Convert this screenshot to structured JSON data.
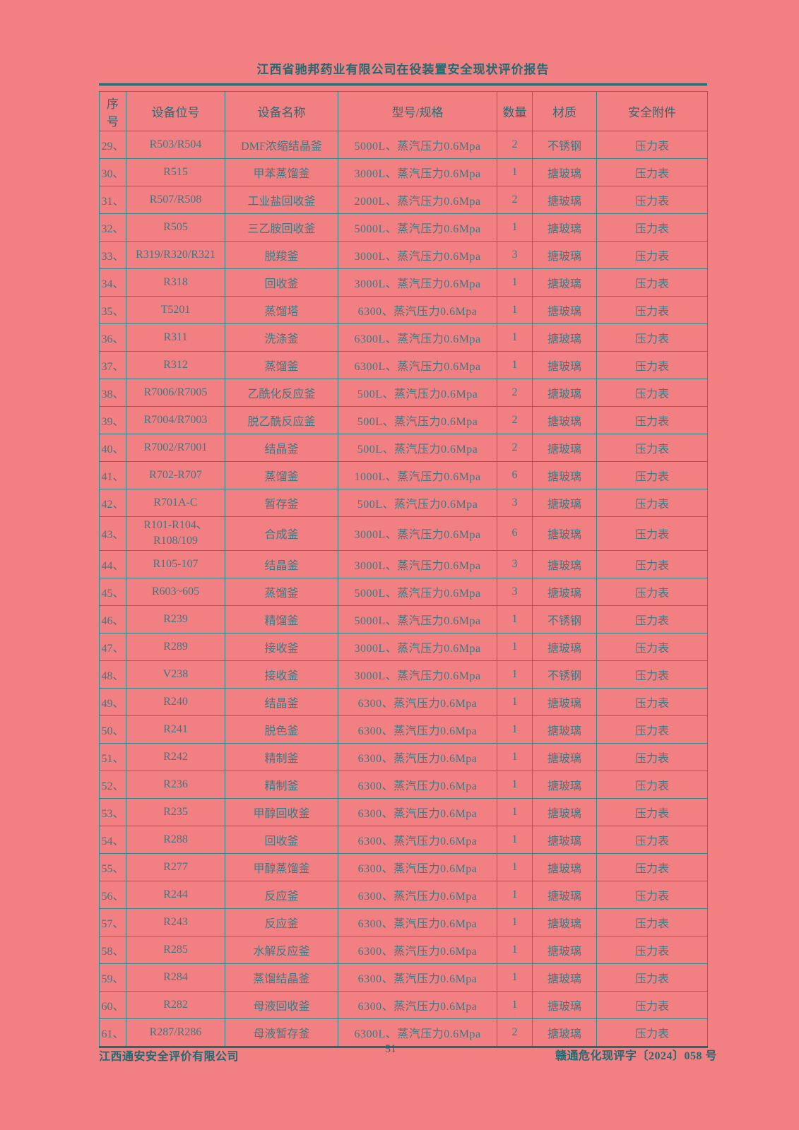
{
  "page": {
    "header_title": "江西省驰邦药业有限公司在役装置安全现状评价报告",
    "footer_left": "江西通安安全评价有限公司",
    "page_number": "51",
    "footer_right": "赣通危化现评字〔2024〕058 号"
  },
  "colors": {
    "background": "#f28082",
    "ink_dark": "#1f6b72",
    "ink_body": "#3d7a83",
    "border": "#2f8b8b",
    "thick_rule": "#1d6e6e"
  },
  "table": {
    "columns": [
      "序号",
      "设备位号",
      "设备名称",
      "型号/规格",
      "数量",
      "材质",
      "安全附件"
    ],
    "rows": [
      {
        "no": "29、",
        "tag": "R503/R504",
        "name": "DMF浓缩结晶釜",
        "spec": "5000L、蒸汽压力0.6Mpa",
        "qty": "2",
        "material": "不锈钢",
        "safety": "压力表"
      },
      {
        "no": "30、",
        "tag": "R515",
        "name": "甲苯蒸馏釜",
        "spec": "3000L、蒸汽压力0.6Mpa",
        "qty": "1",
        "material": "搪玻璃",
        "safety": "压力表"
      },
      {
        "no": "31、",
        "tag": "R507/R508",
        "name": "工业盐回收釜",
        "spec": "2000L、蒸汽压力0.6Mpa",
        "qty": "2",
        "material": "搪玻璃",
        "safety": "压力表"
      },
      {
        "no": "32、",
        "tag": "R505",
        "name": "三乙胺回收釜",
        "spec": "5000L、蒸汽压力0.6Mpa",
        "qty": "1",
        "material": "搪玻璃",
        "safety": "压力表"
      },
      {
        "no": "33、",
        "tag": "R319/R320/R321",
        "name": "脱羧釜",
        "spec": "3000L、蒸汽压力0.6Mpa",
        "qty": "3",
        "material": "搪玻璃",
        "safety": "压力表"
      },
      {
        "no": "34、",
        "tag": "R318",
        "name": "回收釜",
        "spec": "3000L、蒸汽压力0.6Mpa",
        "qty": "1",
        "material": "搪玻璃",
        "safety": "压力表"
      },
      {
        "no": "35、",
        "tag": "T5201",
        "name": "蒸馏塔",
        "spec": "6300、蒸汽压力0.6Mpa",
        "qty": "1",
        "material": "搪玻璃",
        "safety": "压力表"
      },
      {
        "no": "36、",
        "tag": "R311",
        "name": "洗涤釜",
        "spec": "6300L、蒸汽压力0.6Mpa",
        "qty": "1",
        "material": "搪玻璃",
        "safety": "压力表"
      },
      {
        "no": "37、",
        "tag": "R312",
        "name": "蒸馏釜",
        "spec": "6300L、蒸汽压力0.6Mpa",
        "qty": "1",
        "material": "搪玻璃",
        "safety": "压力表"
      },
      {
        "no": "38、",
        "tag": "R7006/R7005",
        "name": "乙酰化反应釜",
        "spec": "500L、蒸汽压力0.6Mpa",
        "qty": "2",
        "material": "搪玻璃",
        "safety": "压力表"
      },
      {
        "no": "39、",
        "tag": "R7004/R7003",
        "name": "脱乙酰反应釜",
        "spec": "500L、蒸汽压力0.6Mpa",
        "qty": "2",
        "material": "搪玻璃",
        "safety": "压力表"
      },
      {
        "no": "40、",
        "tag": "R7002/R7001",
        "name": "结晶釜",
        "spec": "500L、蒸汽压力0.6Mpa",
        "qty": "2",
        "material": "搪玻璃",
        "safety": "压力表"
      },
      {
        "no": "41、",
        "tag": "R702-R707",
        "name": "蒸馏釜",
        "spec": "1000L、蒸汽压力0.6Mpa",
        "qty": "6",
        "material": "搪玻璃",
        "safety": "压力表"
      },
      {
        "no": "42、",
        "tag": "R701A-C",
        "name": "暂存釜",
        "spec": "500L、蒸汽压力0.6Mpa",
        "qty": "3",
        "material": "搪玻璃",
        "safety": "压力表"
      },
      {
        "no": "43、",
        "tag": "R101-R104、\nR108/109",
        "name": "合成釜",
        "spec": "3000L、蒸汽压力0.6Mpa",
        "qty": "6",
        "material": "搪玻璃",
        "safety": "压力表"
      },
      {
        "no": "44、",
        "tag": "R105-107",
        "name": "结晶釜",
        "spec": "3000L、蒸汽压力0.6Mpa",
        "qty": "3",
        "material": "搪玻璃",
        "safety": "压力表"
      },
      {
        "no": "45、",
        "tag": "R603~605",
        "name": "蒸馏釜",
        "spec": "5000L、蒸汽压力0.6Mpa",
        "qty": "3",
        "material": "搪玻璃",
        "safety": "压力表"
      },
      {
        "no": "46、",
        "tag": "R239",
        "name": "精馏釜",
        "spec": "5000L、蒸汽压力0.6Mpa",
        "qty": "1",
        "material": "不锈钢",
        "safety": "压力表"
      },
      {
        "no": "47、",
        "tag": "R289",
        "name": "接收釜",
        "spec": "3000L、蒸汽压力0.6Mpa",
        "qty": "1",
        "material": "搪玻璃",
        "safety": "压力表"
      },
      {
        "no": "48、",
        "tag": "V238",
        "name": "接收釜",
        "spec": "3000L、蒸汽压力0.6Mpa",
        "qty": "1",
        "material": "不锈钢",
        "safety": "压力表"
      },
      {
        "no": "49、",
        "tag": "R240",
        "name": "结晶釜",
        "spec": "6300、蒸汽压力0.6Mpa",
        "qty": "1",
        "material": "搪玻璃",
        "safety": "压力表"
      },
      {
        "no": "50、",
        "tag": "R241",
        "name": "脱色釜",
        "spec": "6300、蒸汽压力0.6Mpa",
        "qty": "1",
        "material": "搪玻璃",
        "safety": "压力表"
      },
      {
        "no": "51、",
        "tag": "R242",
        "name": "精制釜",
        "spec": "6300、蒸汽压力0.6Mpa",
        "qty": "1",
        "material": "搪玻璃",
        "safety": "压力表"
      },
      {
        "no": "52、",
        "tag": "R236",
        "name": "精制釜",
        "spec": "6300、蒸汽压力0.6Mpa",
        "qty": "1",
        "material": "搪玻璃",
        "safety": "压力表"
      },
      {
        "no": "53、",
        "tag": "R235",
        "name": "甲醇回收釜",
        "spec": "6300、蒸汽压力0.6Mpa",
        "qty": "1",
        "material": "搪玻璃",
        "safety": "压力表"
      },
      {
        "no": "54、",
        "tag": "R288",
        "name": "回收釜",
        "spec": "6300、蒸汽压力0.6Mpa",
        "qty": "1",
        "material": "搪玻璃",
        "safety": "压力表"
      },
      {
        "no": "55、",
        "tag": "R277",
        "name": "甲醇蒸馏釜",
        "spec": "6300、蒸汽压力0.6Mpa",
        "qty": "1",
        "material": "搪玻璃",
        "safety": "压力表"
      },
      {
        "no": "56、",
        "tag": "R244",
        "name": "反应釜",
        "spec": "6300、蒸汽压力0.6Mpa",
        "qty": "1",
        "material": "搪玻璃",
        "safety": "压力表"
      },
      {
        "no": "57、",
        "tag": "R243",
        "name": "反应釜",
        "spec": "6300、蒸汽压力0.6Mpa",
        "qty": "1",
        "material": "搪玻璃",
        "safety": "压力表"
      },
      {
        "no": "58、",
        "tag": "R285",
        "name": "水解反应釜",
        "spec": "6300、蒸汽压力0.6Mpa",
        "qty": "1",
        "material": "搪玻璃",
        "safety": "压力表"
      },
      {
        "no": "59、",
        "tag": "R284",
        "name": "蒸馏结晶釜",
        "spec": "6300、蒸汽压力0.6Mpa",
        "qty": "1",
        "material": "搪玻璃",
        "safety": "压力表"
      },
      {
        "no": "60、",
        "tag": "R282",
        "name": "母液回收釜",
        "spec": "6300、蒸汽压力0.6Mpa",
        "qty": "1",
        "material": "搪玻璃",
        "safety": "压力表"
      },
      {
        "no": "61、",
        "tag": "R287/R286",
        "name": "母液暂存釜",
        "spec": "6300L、蒸汽压力0.6Mpa",
        "qty": "2",
        "material": "搪玻璃",
        "safety": "压力表"
      }
    ]
  }
}
